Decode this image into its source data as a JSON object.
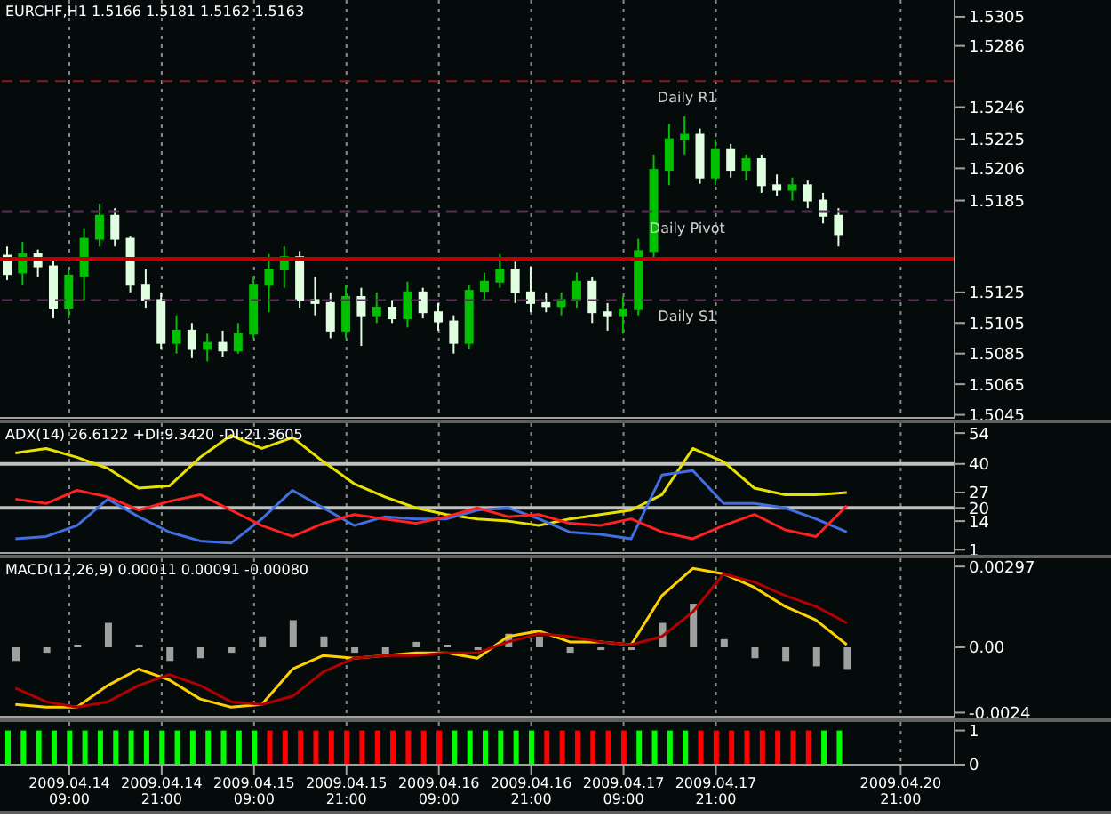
{
  "chart_data": [
    {
      "type": "candlestick",
      "title": "EURCHF,H1  1.5166 1.5181 1.5162 1.5163",
      "categories": [
        null,
        null,
        null,
        null,
        null,
        null,
        null,
        null,
        null,
        null,
        null,
        null,
        null,
        null,
        null,
        null,
        null,
        null,
        null,
        null,
        null,
        null,
        null,
        null,
        null,
        null,
        null,
        null,
        null,
        null,
        null,
        null,
        null,
        null,
        null,
        null,
        null,
        null,
        null,
        null,
        null,
        null,
        null,
        null,
        null,
        null,
        null,
        null,
        null,
        null,
        null,
        null,
        null,
        null,
        null,
        null,
        null,
        null,
        null,
        null,
        null,
        null
      ],
      "ohlc": [
        [
          1.5149,
          1.5155,
          1.5133,
          1.5137
        ],
        [
          1.5138,
          1.5158,
          1.513,
          1.515
        ],
        [
          1.515,
          1.5153,
          1.5135,
          1.5142
        ],
        [
          1.5142,
          1.5147,
          1.5108,
          1.5115
        ],
        [
          1.5115,
          1.514,
          1.5108,
          1.5136
        ],
        [
          1.5136,
          1.5167,
          1.512,
          1.516
        ],
        [
          1.516,
          1.5183,
          1.5155,
          1.5175
        ],
        [
          1.5175,
          1.518,
          1.5155,
          1.516
        ],
        [
          1.516,
          1.5162,
          1.5125,
          1.513
        ],
        [
          1.513,
          1.514,
          1.5115,
          1.512
        ],
        [
          1.512,
          1.5125,
          1.5088,
          1.5092
        ],
        [
          1.5092,
          1.511,
          1.5085,
          1.51
        ],
        [
          1.51,
          1.5105,
          1.5082,
          1.5088
        ],
        [
          1.5088,
          1.5098,
          1.508,
          1.5092
        ],
        [
          1.5092,
          1.51,
          1.5083,
          1.5087
        ],
        [
          1.5087,
          1.5105,
          1.5085,
          1.5098
        ],
        [
          1.5098,
          1.5135,
          1.5095,
          1.513
        ],
        [
          1.513,
          1.515,
          1.5112,
          1.514
        ],
        [
          1.514,
          1.5155,
          1.5128,
          1.5148
        ],
        [
          1.5148,
          1.5152,
          1.5115,
          1.512
        ],
        [
          1.512,
          1.5135,
          1.511,
          1.5118
        ],
        [
          1.5118,
          1.5125,
          1.5095,
          1.51
        ],
        [
          1.51,
          1.513,
          1.5095,
          1.5122
        ],
        [
          1.5122,
          1.5128,
          1.509,
          1.511
        ],
        [
          1.511,
          1.5125,
          1.5105,
          1.5115
        ],
        [
          1.5115,
          1.512,
          1.5105,
          1.5108
        ],
        [
          1.5108,
          1.5132,
          1.5102,
          1.5125
        ],
        [
          1.5125,
          1.5128,
          1.5108,
          1.5112
        ],
        [
          1.5112,
          1.5118,
          1.51,
          1.5106
        ],
        [
          1.5106,
          1.511,
          1.5085,
          1.5092
        ],
        [
          1.5092,
          1.513,
          1.5088,
          1.5126
        ],
        [
          1.5126,
          1.5138,
          1.512,
          1.5132
        ],
        [
          1.5132,
          1.515,
          1.5128,
          1.514
        ],
        [
          1.514,
          1.5145,
          1.5118,
          1.5125
        ],
        [
          1.5125,
          1.5142,
          1.5112,
          1.5118
        ],
        [
          1.5118,
          1.5125,
          1.5112,
          1.5116
        ],
        [
          1.5116,
          1.5125,
          1.511,
          1.512
        ],
        [
          1.512,
          1.5138,
          1.5115,
          1.5132
        ],
        [
          1.5132,
          1.5135,
          1.5105,
          1.5112
        ],
        [
          1.5112,
          1.5118,
          1.51,
          1.511
        ],
        [
          1.511,
          1.5122,
          1.5098,
          1.5114
        ],
        [
          1.5114,
          1.516,
          1.511,
          1.5152
        ],
        [
          1.5152,
          1.5215,
          1.5148,
          1.5205
        ],
        [
          1.5205,
          1.5235,
          1.5195,
          1.5225
        ],
        [
          1.5225,
          1.524,
          1.5215,
          1.5228
        ],
        [
          1.5228,
          1.5232,
          1.5196,
          1.52
        ],
        [
          1.52,
          1.5225,
          1.5195,
          1.5218
        ],
        [
          1.5218,
          1.5222,
          1.52,
          1.5205
        ],
        [
          1.5205,
          1.5215,
          1.5198,
          1.5212
        ],
        [
          1.5212,
          1.5215,
          1.519,
          1.5195
        ],
        [
          1.5195,
          1.5202,
          1.5188,
          1.5192
        ],
        [
          1.5192,
          1.52,
          1.5185,
          1.5195
        ],
        [
          1.5195,
          1.5198,
          1.518,
          1.5185
        ],
        [
          1.5185,
          1.519,
          1.517,
          1.5175
        ],
        [
          1.5175,
          1.518,
          1.5155,
          1.5163
        ],
        null,
        null,
        null,
        null,
        null,
        null,
        null
      ],
      "colors": [
        "#e0ffe0",
        "#00c000",
        "#e0ffe0",
        "#e0ffe0",
        "#00c000",
        "#00c000",
        "#00c000",
        "#e0ffe0",
        "#e0ffe0",
        "#e0ffe0",
        "#e0ffe0",
        "#00c000",
        "#e0ffe0",
        "#00c000",
        "#e0ffe0",
        "#00c000",
        "#00c000",
        "#00c000",
        "#00c000",
        "#e0ffe0",
        "#e0ffe0",
        "#e0ffe0",
        "#00c000",
        "#e0ffe0",
        "#00c000",
        "#e0ffe0",
        "#00c000",
        "#e0ffe0",
        "#e0ffe0",
        "#e0ffe0",
        "#00c000",
        "#00c000",
        "#00c000",
        "#e0ffe0",
        "#e0ffe0",
        "#e0ffe0",
        "#00c000",
        "#00c000",
        "#e0ffe0",
        "#e0ffe0",
        "#00c000",
        "#00c000",
        "#00c000",
        "#00c000",
        "#00c000",
        "#e0ffe0",
        "#00c000",
        "#e0ffe0",
        "#00c000",
        "#e0ffe0",
        "#e0ffe0",
        "#00c000",
        "#e0ffe0",
        "#e0ffe0",
        "#e0ffe0",
        null,
        null,
        null,
        null,
        null,
        null,
        null
      ],
      "ylim": [
        1.5043,
        1.5316
      ],
      "yticks": [
        1.5305,
        1.5286,
        1.5246,
        1.5225,
        1.5206,
        1.5185,
        1.5125,
        1.5105,
        1.5085,
        1.5065,
        1.5045
      ],
      "ref_lines": [
        {
          "axis": "y",
          "value": 1.5263,
          "label": "Daily R1",
          "color": "#8b1a1a",
          "line_style": "dashed"
        },
        {
          "axis": "y",
          "value": 1.5178,
          "label": "Daily Pivot",
          "color": "#5a2a5a",
          "line_style": "dashed"
        },
        {
          "axis": "y",
          "value": 1.5147,
          "label": null,
          "color": "#c00000",
          "line_style": "solid"
        },
        {
          "axis": "y",
          "value": 1.512,
          "label": "Daily S1",
          "color": "#5a2a5a",
          "line_style": "dashed"
        }
      ],
      "grid": "x",
      "tick_labels": "y"
    },
    {
      "type": "line",
      "title": "ADX(14) 26.6122 +DI:9.3420 -DI:21.3605",
      "categories": [
        null,
        null,
        null,
        null,
        null,
        null,
        null,
        null,
        null,
        null,
        null,
        null,
        null,
        null,
        null,
        null,
        null,
        null,
        null,
        null,
        null,
        null,
        null,
        null,
        null,
        null,
        null,
        null,
        null,
        null,
        null
      ],
      "series": [
        {
          "color": "#e8e000",
          "values": [
            45,
            47,
            43,
            38,
            29,
            30,
            43,
            53,
            47,
            52,
            41,
            31,
            25,
            20,
            17,
            15,
            14,
            12,
            15,
            17,
            19,
            26,
            47,
            41,
            29,
            26,
            26,
            27,
            null,
            null,
            null
          ]
        },
        {
          "color": "#4070e0",
          "values": [
            6,
            7,
            12,
            24,
            16,
            9,
            5,
            4,
            15,
            28,
            20,
            12,
            16,
            15,
            15,
            19,
            20,
            15,
            9,
            8,
            6,
            35,
            37,
            22,
            22,
            20,
            15,
            9,
            null,
            null,
            null
          ]
        },
        {
          "color": "#ff2020",
          "values": [
            24,
            22,
            28,
            25,
            19,
            23,
            26,
            19,
            12,
            7,
            13,
            17,
            15,
            13,
            16,
            20,
            16,
            17,
            13,
            12,
            15,
            9,
            6,
            12,
            17,
            10,
            7,
            21,
            null,
            null,
            null
          ]
        }
      ],
      "ylim": [
        -0.5,
        58.5
      ],
      "yticks": [
        1,
        14,
        20,
        27,
        40,
        54
      ],
      "ref_lines": [
        {
          "axis": "y",
          "value": 40,
          "label": null,
          "color": "#c0c0c0",
          "line_style": "solid"
        },
        {
          "axis": "y",
          "value": 20,
          "label": null,
          "color": "#c0c0c0",
          "line_style": "solid"
        }
      ],
      "grid": "x",
      "tick_labels": "y"
    },
    {
      "type": "line",
      "title": "MACD(12,26,9) 0.00011 0.00091 -0.00080",
      "categories": [
        null,
        null,
        null,
        null,
        null,
        null,
        null,
        null,
        null,
        null,
        null,
        null,
        null,
        null,
        null,
        null,
        null,
        null,
        null,
        null,
        null,
        null,
        null,
        null,
        null,
        null,
        null,
        null,
        null,
        null,
        null
      ],
      "series": [
        {
          "type": "bar",
          "color": "#a0a0a0",
          "values": [
            -0.0005,
            -0.0002,
            0.0001,
            0.0009,
            0.0001,
            -0.0005,
            -0.0004,
            -0.0002,
            0.0004,
            0.001,
            0.0004,
            -0.0002,
            -0.0003,
            0.0002,
            0.0001,
            -0.0001,
            0.0005,
            0.0004,
            -0.0002,
            -0.0001,
            -0.0001,
            0.0009,
            0.0016,
            0.0003,
            -0.0004,
            -0.0005,
            -0.0007,
            -0.0008,
            null,
            null,
            null
          ]
        },
        {
          "color": "#ffd000",
          "values": [
            -0.0021,
            -0.0022,
            -0.0022,
            -0.0014,
            -0.0008,
            -0.0012,
            -0.0019,
            -0.0022,
            -0.0021,
            -0.0008,
            -0.0003,
            -0.0004,
            -0.0003,
            -0.0002,
            -0.0002,
            -0.0004,
            0.0004,
            0.0006,
            0.0002,
            0.0002,
            0.0001,
            0.0019,
            0.0029,
            0.0027,
            0.0022,
            0.0015,
            0.001,
            0.0001,
            null,
            null,
            null
          ]
        },
        {
          "color": "#b00000",
          "values": [
            -0.0015,
            -0.002,
            -0.0022,
            -0.002,
            -0.0014,
            -0.001,
            -0.0014,
            -0.002,
            -0.0021,
            -0.0018,
            -0.0009,
            -0.0004,
            -0.0003,
            -0.0003,
            -0.0002,
            -0.0002,
            0.0002,
            0.0005,
            0.0004,
            0.0002,
            0.0001,
            0.0004,
            0.0013,
            0.0027,
            0.0024,
            0.0019,
            0.0015,
            0.0009,
            null,
            null,
            null
          ]
        }
      ],
      "ylim": [
        -0.00255,
        0.00327
      ],
      "yticks": [
        0.00297,
        {
          "value": 0,
          "label": "0.00"
        },
        -0.0024
      ],
      "grid": "x",
      "tick_labels": "y"
    },
    {
      "type": "bar",
      "categories": [
        null,
        null,
        null,
        null,
        "2009.04.14 09:00",
        null,
        null,
        null,
        null,
        null,
        "2009.04.14 21:00",
        null,
        null,
        null,
        null,
        null,
        "2009.04.15 09:00",
        null,
        null,
        null,
        null,
        null,
        "2009.04.15 21:00",
        null,
        null,
        null,
        null,
        null,
        "2009.04.16 09:00",
        null,
        null,
        null,
        null,
        null,
        "2009.04.16 21:00",
        null,
        null,
        null,
        null,
        null,
        "2009.04.17 09:00",
        null,
        null,
        null,
        null,
        null,
        "2009.04.17 21:00",
        null,
        null,
        null,
        null,
        null,
        null,
        null,
        null,
        null,
        null,
        null,
        "2009.04.20 21:00",
        null,
        null,
        null
      ],
      "values": [
        1,
        1,
        1,
        1,
        1,
        1,
        1,
        1,
        1,
        1,
        1,
        1,
        1,
        1,
        1,
        1,
        1,
        1,
        1,
        1,
        1,
        1,
        1,
        1,
        1,
        1,
        1,
        1,
        1,
        1,
        1,
        1,
        1,
        1,
        1,
        1,
        1,
        1,
        1,
        1,
        1,
        1,
        1,
        1,
        1,
        1,
        1,
        1,
        1,
        1,
        1,
        1,
        1,
        1,
        1,
        null,
        null,
        null,
        null,
        null,
        null,
        null
      ],
      "colors": [
        "#00ff00",
        "#00ff00",
        "#00ff00",
        "#00ff00",
        "#00ff00",
        "#00ff00",
        "#00ff00",
        "#00ff00",
        "#00ff00",
        "#00ff00",
        "#00ff00",
        "#00ff00",
        "#00ff00",
        "#00ff00",
        "#00ff00",
        "#00ff00",
        "#00ff00",
        "#ff0000",
        "#ff0000",
        "#ff0000",
        "#ff0000",
        "#ff0000",
        "#ff0000",
        "#ff0000",
        "#ff0000",
        "#ff0000",
        "#ff0000",
        "#ff0000",
        "#ff0000",
        "#00ff00",
        "#00ff00",
        "#00ff00",
        "#00ff00",
        "#00ff00",
        "#00ff00",
        "#ff0000",
        "#ff0000",
        "#ff0000",
        "#ff0000",
        "#ff0000",
        "#ff0000",
        "#00ff00",
        "#00ff00",
        "#00ff00",
        "#00ff00",
        "#ff0000",
        "#ff0000",
        "#ff0000",
        "#ff0000",
        "#ff0000",
        "#ff0000",
        "#ff0000",
        "#ff0000",
        "#00ff00",
        "#00ff00",
        null,
        null,
        null,
        null,
        null,
        null,
        null
      ],
      "ylim": [
        0,
        1.25
      ],
      "yticks": [
        0,
        1
      ],
      "grid": "x"
    }
  ]
}
